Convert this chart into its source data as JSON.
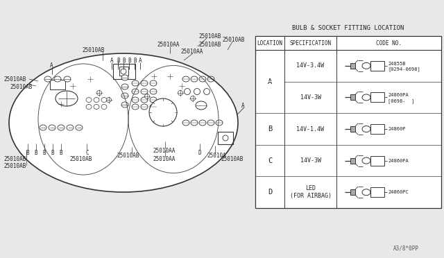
{
  "title": "BULB & SOCKET FITTING LOCATION",
  "bg_color": "#e8e8e8",
  "table_rows": [
    {
      "loc": "A",
      "spec": "14V-3.4W",
      "code": "24855B",
      "code2": "[0294-0698]",
      "merged_a": true
    },
    {
      "loc": "A",
      "spec": "14V-3W",
      "code": "24860PA",
      "code2": "[0698-  ]",
      "merged_a": true
    },
    {
      "loc": "B",
      "spec": "14V-1.4W",
      "code": "24860P",
      "code2": "",
      "merged_a": false
    },
    {
      "loc": "C",
      "spec": "14V-3W",
      "code": "24860PA",
      "code2": "",
      "merged_a": false
    },
    {
      "loc": "D",
      "spec": "LED\n(FOR AIRBAG)",
      "code": "24860PC",
      "code2": "",
      "merged_a": false
    }
  ],
  "footer_text": "A3/8*0PP",
  "lc": "#333333",
  "tc": "#222222"
}
